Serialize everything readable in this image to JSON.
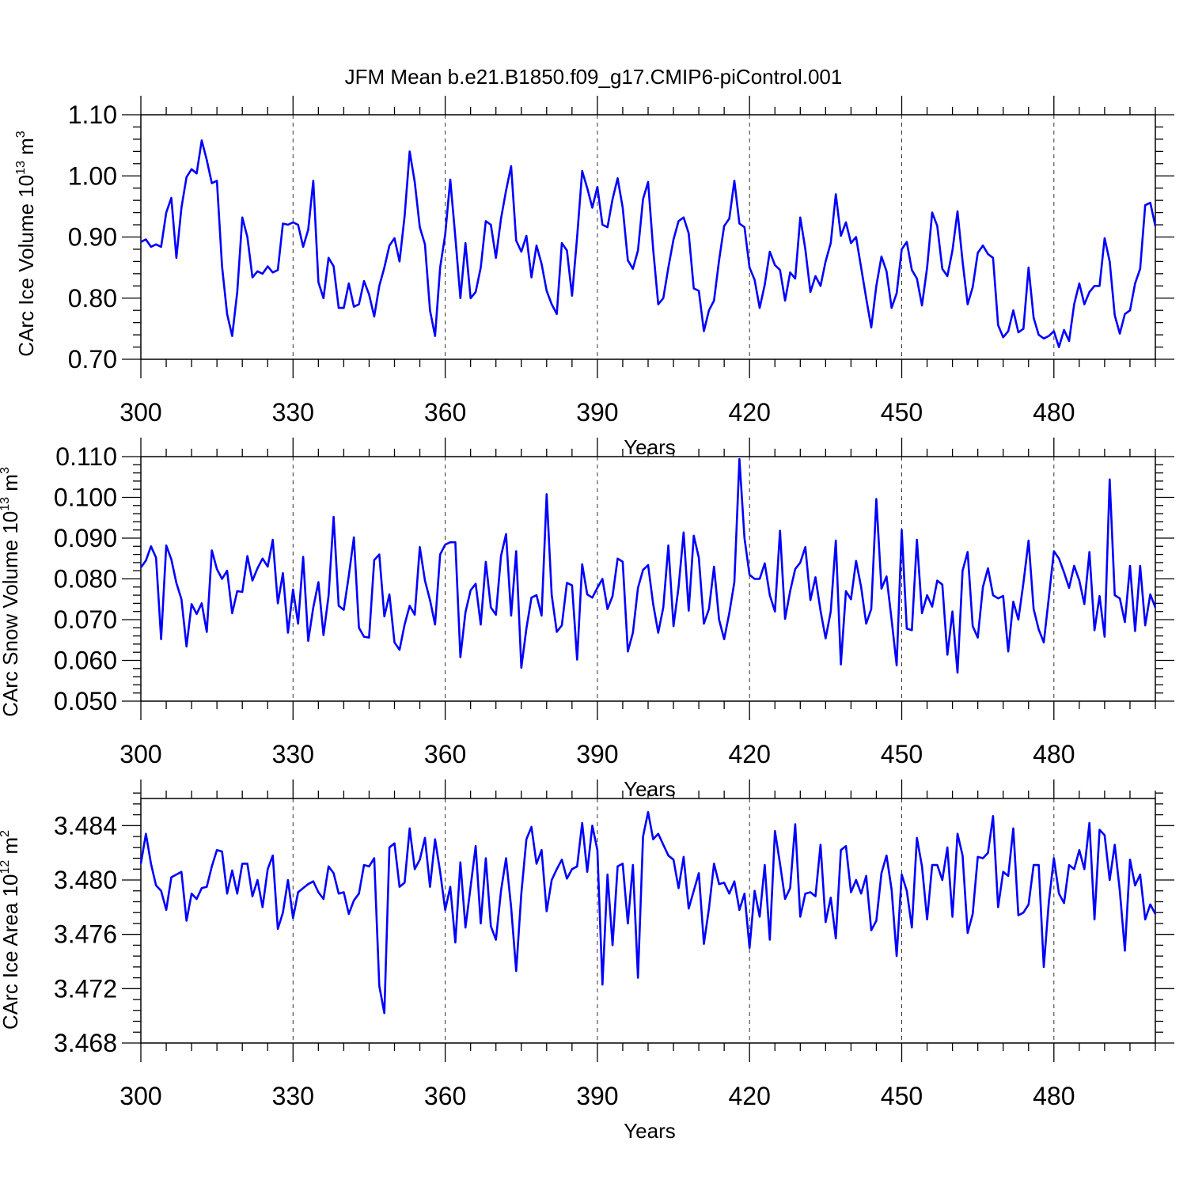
{
  "title": "JFM Mean b.e21.B1850.f09_g17.CMIP6-piControl.001",
  "colors": {
    "series": "#0000ff",
    "axes": "#000000",
    "grid": "#555555"
  },
  "chart_data": [
    {
      "type": "line",
      "title": "JFM Mean b.e21.B1850.f09_g17.CMIP6-piControl.001",
      "xlabel": "Years",
      "ylabel": "CArc Ice Volume 10^13 m^3",
      "ylabel_base": "CArc Ice Volume 10",
      "ylabel_exp": "13",
      "ylabel_unit": " m",
      "ylabel_unit_exp": "3",
      "xlim": [
        300,
        500
      ],
      "ylim": [
        0.7,
        1.1
      ],
      "xticks": [
        300,
        330,
        360,
        390,
        420,
        450,
        480
      ],
      "yticks": [
        "0.70",
        "0.80",
        "0.90",
        "1.00",
        "1.10"
      ],
      "grid": "vertical dashed at major x ticks",
      "series": [
        {
          "x_start": 300,
          "x_step": 1,
          "values": [
            0.892,
            0.896,
            0.884,
            0.888,
            0.884,
            0.94,
            0.964,
            0.866,
            0.948,
            0.998,
            1.011,
            1.004,
            1.058,
            1.026,
            0.988,
            0.992,
            0.852,
            0.774,
            0.738,
            0.81,
            0.932,
            0.9,
            0.834,
            0.844,
            0.84,
            0.852,
            0.842,
            0.846,
            0.922,
            0.92,
            0.924,
            0.92,
            0.884,
            0.912,
            0.992,
            0.826,
            0.8,
            0.866,
            0.852,
            0.784,
            0.784,
            0.824,
            0.786,
            0.79,
            0.828,
            0.806,
            0.77,
            0.82,
            0.85,
            0.886,
            0.898,
            0.86,
            0.934,
            1.04,
            0.99,
            0.916,
            0.888,
            0.78,
            0.738,
            0.85,
            0.904,
            0.994,
            0.9,
            0.8,
            0.89,
            0.8,
            0.81,
            0.85,
            0.926,
            0.92,
            0.866,
            0.93,
            0.976,
            1.016,
            0.894,
            0.876,
            0.902,
            0.834,
            0.886,
            0.856,
            0.812,
            0.79,
            0.774,
            0.89,
            0.878,
            0.804,
            0.9,
            1.008,
            0.98,
            0.948,
            0.982,
            0.92,
            0.916,
            0.962,
            0.996,
            0.948,
            0.862,
            0.848,
            0.878,
            0.962,
            0.99,
            0.88,
            0.79,
            0.8,
            0.85,
            0.896,
            0.926,
            0.932,
            0.906,
            0.816,
            0.812,
            0.746,
            0.78,
            0.796,
            0.862,
            0.918,
            0.93,
            0.992,
            0.922,
            0.916,
            0.85,
            0.83,
            0.784,
            0.822,
            0.876,
            0.854,
            0.846,
            0.796,
            0.842,
            0.832,
            0.932,
            0.88,
            0.81,
            0.836,
            0.82,
            0.86,
            0.89,
            0.97,
            0.902,
            0.924,
            0.89,
            0.9,
            0.85,
            0.8,
            0.752,
            0.82,
            0.868,
            0.844,
            0.784,
            0.808,
            0.88,
            0.892,
            0.846,
            0.832,
            0.788,
            0.85,
            0.94,
            0.918,
            0.848,
            0.836,
            0.878,
            0.942,
            0.86,
            0.79,
            0.818,
            0.874,
            0.886,
            0.872,
            0.866,
            0.756,
            0.736,
            0.746,
            0.78,
            0.744,
            0.75,
            0.85,
            0.768,
            0.74,
            0.734,
            0.738,
            0.746,
            0.72,
            0.748,
            0.73,
            0.79,
            0.824,
            0.79,
            0.81,
            0.82,
            0.82,
            0.898,
            0.86,
            0.772,
            0.742,
            0.774,
            0.78,
            0.824,
            0.848,
            0.952,
            0.956,
            0.918
          ]
        }
      ]
    },
    {
      "type": "line",
      "xlabel": "Years",
      "ylabel": "CArc Snow Volume 10^13 m^3",
      "ylabel_base": "CArc Snow Volume 10",
      "ylabel_exp": "13",
      "ylabel_unit": " m",
      "ylabel_unit_exp": "3",
      "xlim": [
        300,
        500
      ],
      "ylim": [
        0.05,
        0.11
      ],
      "xticks": [
        300,
        330,
        360,
        390,
        420,
        450,
        480
      ],
      "yticks": [
        "0.050",
        "0.060",
        "0.070",
        "0.080",
        "0.090",
        "0.100",
        "0.110"
      ],
      "grid": "vertical dashed at major x ticks",
      "series": [
        {
          "x_start": 300,
          "x_step": 1,
          "values": [
            0.0828,
            0.0845,
            0.088,
            0.0852,
            0.0652,
            0.0882,
            0.0848,
            0.079,
            0.075,
            0.0634,
            0.0738,
            0.0714,
            0.074,
            0.067,
            0.087,
            0.0824,
            0.08,
            0.082,
            0.0716,
            0.077,
            0.0768,
            0.0856,
            0.0796,
            0.0826,
            0.085,
            0.083,
            0.0896,
            0.074,
            0.0814,
            0.0668,
            0.0774,
            0.069,
            0.0854,
            0.0648,
            0.073,
            0.0792,
            0.0662,
            0.0758,
            0.0952,
            0.0734,
            0.0724,
            0.0808,
            0.0902,
            0.068,
            0.0658,
            0.0656,
            0.0846,
            0.086,
            0.0708,
            0.0762,
            0.0644,
            0.0626,
            0.0688,
            0.0734,
            0.0712,
            0.0878,
            0.0796,
            0.0748,
            0.0688,
            0.086,
            0.0884,
            0.089,
            0.089,
            0.0608,
            0.0718,
            0.0772,
            0.0788,
            0.0688,
            0.0842,
            0.073,
            0.0712,
            0.0856,
            0.091,
            0.071,
            0.0868,
            0.0582,
            0.0678,
            0.0754,
            0.076,
            0.071,
            0.1008,
            0.076,
            0.067,
            0.0686,
            0.079,
            0.0784,
            0.0602,
            0.0836,
            0.0762,
            0.0754,
            0.0778,
            0.08,
            0.0726,
            0.0758,
            0.085,
            0.0842,
            0.0622,
            0.0668,
            0.0778,
            0.0822,
            0.0834,
            0.0738,
            0.0668,
            0.073,
            0.0882,
            0.0684,
            0.078,
            0.0914,
            0.0722,
            0.0906,
            0.0852,
            0.069,
            0.0726,
            0.083,
            0.07,
            0.0652,
            0.0716,
            0.0792,
            0.1094,
            0.09,
            0.081,
            0.08,
            0.08,
            0.0838,
            0.076,
            0.072,
            0.0918,
            0.0702,
            0.077,
            0.0824,
            0.084,
            0.0878,
            0.0748,
            0.0804,
            0.0722,
            0.0654,
            0.072,
            0.0894,
            0.059,
            0.077,
            0.075,
            0.0844,
            0.078,
            0.069,
            0.0726,
            0.0996,
            0.0776,
            0.0806,
            0.07,
            0.0588,
            0.092,
            0.0678,
            0.0674,
            0.0896,
            0.0716,
            0.076,
            0.0732,
            0.0796,
            0.0786,
            0.0614,
            0.072,
            0.057,
            0.082,
            0.0866,
            0.0684,
            0.0656,
            0.078,
            0.0826,
            0.076,
            0.0752,
            0.0758,
            0.0622,
            0.0744,
            0.07,
            0.079,
            0.0894,
            0.0726,
            0.0676,
            0.0644,
            0.0754,
            0.0868,
            0.085,
            0.0816,
            0.0778,
            0.0832,
            0.0796,
            0.0738,
            0.0866,
            0.0674,
            0.0758,
            0.0658,
            0.1044,
            0.076,
            0.0752,
            0.0694,
            0.0832,
            0.0672,
            0.0832,
            0.0686,
            0.0762,
            0.073
          ]
        }
      ]
    },
    {
      "type": "line",
      "xlabel": "Years",
      "ylabel": "CArc Ice Area 10^12 m^2",
      "ylabel_base": "CArc Ice Area 10",
      "ylabel_exp": "12",
      "ylabel_unit": " m",
      "ylabel_unit_exp": "2",
      "xlim": [
        300,
        500
      ],
      "ylim": [
        3.468,
        3.486
      ],
      "xticks": [
        300,
        330,
        360,
        390,
        420,
        450,
        480
      ],
      "yticks": [
        "3.468",
        "3.472",
        "3.476",
        "3.480",
        "3.484"
      ],
      "grid": "vertical dashed at major x ticks",
      "series": [
        {
          "x_start": 300,
          "x_step": 1,
          "values": [
            3.4812,
            3.4834,
            3.4812,
            3.4796,
            3.4792,
            3.4778,
            3.4802,
            3.4804,
            3.4806,
            3.477,
            3.479,
            3.4786,
            3.4794,
            3.4795,
            3.481,
            3.4822,
            3.4821,
            3.479,
            3.4807,
            3.479,
            3.4812,
            3.4812,
            3.4788,
            3.48,
            3.478,
            3.4808,
            3.4818,
            3.4764,
            3.4776,
            3.48,
            3.4772,
            3.4791,
            3.4794,
            3.4797,
            3.4799,
            3.4791,
            3.4786,
            3.481,
            3.4805,
            3.479,
            3.4791,
            3.4775,
            3.4785,
            3.479,
            3.4811,
            3.481,
            3.4816,
            3.4722,
            3.4702,
            3.4824,
            3.4827,
            3.4795,
            3.4798,
            3.4838,
            3.4808,
            3.4815,
            3.4831,
            3.4795,
            3.483,
            3.4806,
            3.4778,
            3.4795,
            3.4754,
            3.4813,
            3.4765,
            3.4795,
            3.4825,
            3.4768,
            3.4816,
            3.4766,
            3.4756,
            3.4792,
            3.4816,
            3.478,
            3.4733,
            3.479,
            3.483,
            3.4839,
            3.4812,
            3.4822,
            3.4777,
            3.48,
            3.4808,
            3.4815,
            3.4801,
            3.4808,
            3.481,
            3.4842,
            3.4806,
            3.484,
            3.4822,
            3.4723,
            3.4804,
            3.4752,
            3.481,
            3.4812,
            3.4768,
            3.4811,
            3.4728,
            3.4832,
            3.485,
            3.483,
            3.4834,
            3.4826,
            3.4818,
            3.4815,
            3.4794,
            3.4817,
            3.4779,
            3.4792,
            3.4805,
            3.4753,
            3.4779,
            3.4812,
            3.4797,
            3.4798,
            3.479,
            3.4799,
            3.4778,
            3.479,
            3.475,
            3.4792,
            3.4773,
            3.4811,
            3.4756,
            3.4836,
            3.4812,
            3.4786,
            3.4794,
            3.4841,
            3.4773,
            3.479,
            3.4791,
            3.4788,
            3.4826,
            3.4769,
            3.4787,
            3.4757,
            3.4822,
            3.4825,
            3.4791,
            3.48,
            3.479,
            3.4803,
            3.4763,
            3.477,
            3.4805,
            3.4818,
            3.4793,
            3.4744,
            3.4804,
            3.4792,
            3.4765,
            3.4831,
            3.481,
            3.4771,
            3.4811,
            3.4811,
            3.48,
            3.4824,
            3.4773,
            3.4834,
            3.4818,
            3.4761,
            3.4775,
            3.4817,
            3.4816,
            3.482,
            3.4847,
            3.478,
            3.4806,
            3.4803,
            3.4838,
            3.4774,
            3.4776,
            3.4782,
            3.4811,
            3.4811,
            3.4736,
            3.4784,
            3.4816,
            3.479,
            3.4783,
            3.4811,
            3.4808,
            3.4822,
            3.4808,
            3.4842,
            3.4771,
            3.4837,
            3.4833,
            3.48,
            3.4826,
            3.4792,
            3.4748,
            3.4815,
            3.4796,
            3.4804,
            3.4771,
            3.4782,
            3.4775
          ]
        }
      ]
    }
  ]
}
